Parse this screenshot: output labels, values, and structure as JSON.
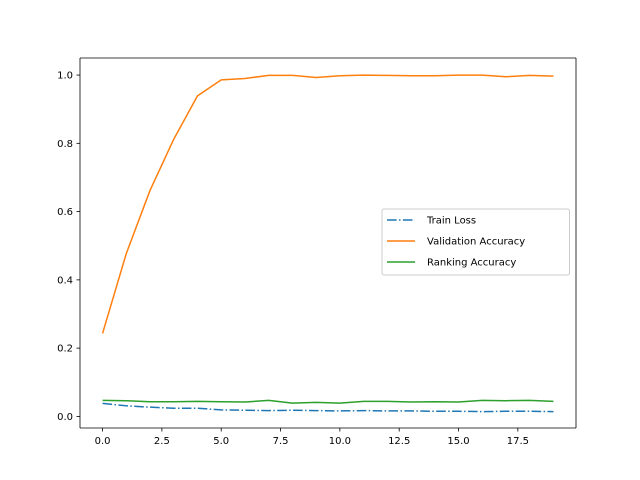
{
  "chart_data": {
    "type": "line",
    "title": "",
    "xlabel": "",
    "ylabel": "",
    "xlim": [
      -0.95,
      19.95
    ],
    "ylim": [
      -0.034,
      1.05
    ],
    "x_ticks": [
      0.0,
      2.5,
      5.0,
      7.5,
      10.0,
      12.5,
      15.0,
      17.5
    ],
    "x_tick_labels": [
      "0.0",
      "2.5",
      "5.0",
      "7.5",
      "10.0",
      "12.5",
      "15.0",
      "17.5"
    ],
    "y_ticks": [
      0.0,
      0.2,
      0.4,
      0.6,
      0.8,
      1.0
    ],
    "y_tick_labels": [
      "0.0",
      "0.2",
      "0.4",
      "0.6",
      "0.8",
      "1.0"
    ],
    "grid": false,
    "legend_position": "center-right",
    "x": [
      0,
      1,
      2,
      3,
      4,
      5,
      6,
      7,
      8,
      9,
      10,
      11,
      12,
      13,
      14,
      15,
      16,
      17,
      18,
      19
    ],
    "series": [
      {
        "name": "Train Loss",
        "color": "#1f77b4",
        "linestyle": "dashdot",
        "values": [
          0.038,
          0.031,
          0.027,
          0.024,
          0.024,
          0.019,
          0.018,
          0.017,
          0.018,
          0.017,
          0.016,
          0.017,
          0.016,
          0.016,
          0.015,
          0.015,
          0.014,
          0.015,
          0.015,
          0.014
        ]
      },
      {
        "name": "Validation Accuracy",
        "color": "#ff7f0e",
        "linestyle": "solid",
        "values": [
          0.243,
          0.477,
          0.662,
          0.812,
          0.939,
          0.986,
          0.99,
          0.999,
          0.999,
          0.993,
          0.998,
          1.0,
          0.999,
          0.998,
          0.998,
          1.0,
          1.0,
          0.995,
          0.999,
          0.997
        ]
      },
      {
        "name": "Ranking Accuracy",
        "color": "#2ca02c",
        "linestyle": "solid",
        "values": [
          0.047,
          0.046,
          0.043,
          0.043,
          0.044,
          0.043,
          0.042,
          0.047,
          0.039,
          0.041,
          0.039,
          0.044,
          0.044,
          0.042,
          0.043,
          0.042,
          0.047,
          0.046,
          0.047,
          0.044
        ]
      }
    ]
  }
}
